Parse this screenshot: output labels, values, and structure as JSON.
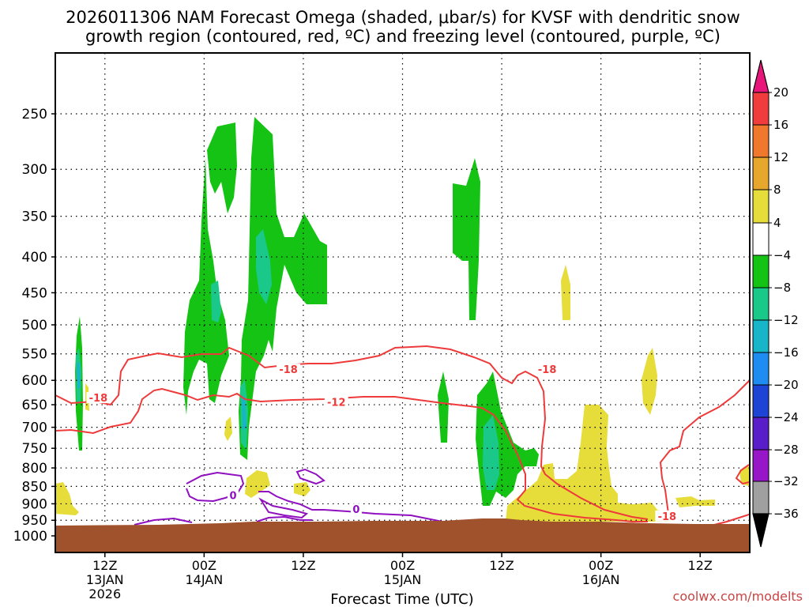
{
  "chart_data": {
    "type": "time-height contour",
    "title_line1": "2026011306 NAM Forecast Omega (shaded, μbar/s) for KVSF with dendritic snow",
    "title_line2": "growth region (contoured, red, ºC) and freezing level (contoured, purple, ºC)",
    "xlabel": "Forecast Time (UTC)",
    "credit": "coolwx.com/modelts",
    "x_ticks": [
      {
        "hour": 6,
        "label1": "12Z",
        "label2": "13JAN",
        "label3": "2026"
      },
      {
        "hour": 18,
        "label1": "00Z",
        "label2": "14JAN",
        "label3": ""
      },
      {
        "hour": 30,
        "label1": "12Z",
        "label2": "",
        "label3": ""
      },
      {
        "hour": 42,
        "label1": "00Z",
        "label2": "15JAN",
        "label3": ""
      },
      {
        "hour": 54,
        "label1": "12Z",
        "label2": "",
        "label3": ""
      },
      {
        "hour": 66,
        "label1": "00Z",
        "label2": "16JAN",
        "label3": ""
      },
      {
        "hour": 78,
        "label1": "12Z",
        "label2": "",
        "label3": ""
      }
    ],
    "x_range": [
      0,
      84
    ],
    "y_levels_hPa": [
      250,
      300,
      350,
      400,
      450,
      500,
      550,
      600,
      650,
      700,
      750,
      800,
      850,
      900,
      950,
      1000
    ],
    "y_range": [
      200,
      1020
    ],
    "colorbar": {
      "labels": [
        "20",
        "16",
        "12",
        "8",
        "4",
        "−4",
        "−8",
        "−12",
        "−16",
        "−20",
        "−24",
        "−28",
        "−32",
        "−36"
      ],
      "colors": [
        "#e8157a",
        "#f03c3c",
        "#f0782d",
        "#e7a62c",
        "#e6dd3a",
        "#ffffff",
        "#15c315",
        "#1ac98a",
        "#18b4c8",
        "#1e8cf0",
        "#1e44d6",
        "#5a1ec8",
        "#9616c8",
        "#a0a0a0",
        "#000000"
      ]
    },
    "red_contour_labels": [
      {
        "value": "-18",
        "hour": 5.2,
        "hPa": 640
      },
      {
        "value": "-18",
        "hour": 28.2,
        "hPa": 583
      },
      {
        "value": "-12",
        "hour": 34,
        "hPa": 649
      },
      {
        "value": "-18",
        "hour": 59.5,
        "hPa": 583
      },
      {
        "value": "-18",
        "hour": 74,
        "hPa": 944
      }
    ],
    "purple_contour_labels": [
      {
        "value": "0",
        "hour": 21.5,
        "hPa": 882
      },
      {
        "value": "0",
        "hour": 36.4,
        "hPa": 923
      }
    ],
    "colors": {
      "green": "#15c315",
      "teal": "#1ac98a",
      "yellow": "#e6dd3a",
      "red_contour": "#ee3a3a",
      "purple_contour": "#9010c0",
      "terrain": "#a0522d"
    }
  }
}
